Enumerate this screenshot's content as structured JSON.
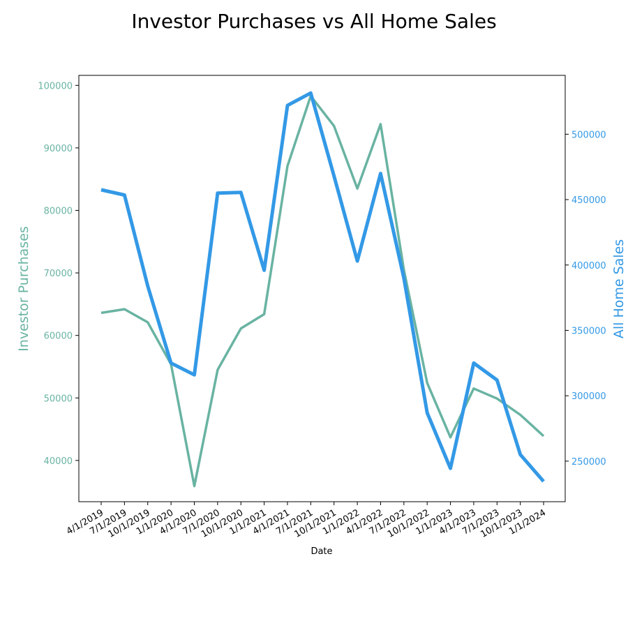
{
  "chart_data": {
    "type": "line",
    "title": "Investor Purchases vs All Home Sales",
    "xlabel": "Date",
    "x": [
      "4/1/2019",
      "7/1/2019",
      "10/1/2019",
      "1/1/2020",
      "4/1/2020",
      "7/1/2020",
      "10/1/2020",
      "1/1/2021",
      "4/1/2021",
      "7/1/2021",
      "10/1/2021",
      "1/1/2022",
      "4/1/2022",
      "7/1/2022",
      "10/1/2022",
      "1/1/2023",
      "4/1/2023",
      "7/1/2023",
      "10/1/2023",
      "1/1/2024"
    ],
    "left_axis": {
      "label": "Investor Purchases",
      "color": "#69b3a2",
      "ylim": [
        33400,
        101600
      ],
      "ticks": [
        40000,
        50000,
        60000,
        70000,
        80000,
        90000,
        100000
      ]
    },
    "right_axis": {
      "label": "All Home Sales",
      "color": "#3399e6",
      "ylim": [
        219000,
        545000
      ],
      "ticks": [
        250000,
        300000,
        350000,
        400000,
        450000,
        500000
      ]
    },
    "series": [
      {
        "name": "Investor Purchases",
        "axis": "left",
        "color": "#69b3a2",
        "values": [
          63600,
          64200,
          62100,
          55400,
          35900,
          54500,
          61100,
          63400,
          87100,
          98300,
          93500,
          83500,
          93800,
          70500,
          52400,
          43700,
          51500,
          49900,
          47300,
          43900
        ]
      },
      {
        "name": "All Home Sales",
        "axis": "right",
        "color": "#3399e6",
        "values": [
          457500,
          453500,
          384000,
          325000,
          316000,
          455000,
          455500,
          396000,
          522000,
          531500,
          468000,
          403000,
          470000,
          390000,
          287000,
          244500,
          325000,
          312000,
          255000,
          234500
        ]
      }
    ],
    "grid": false
  }
}
